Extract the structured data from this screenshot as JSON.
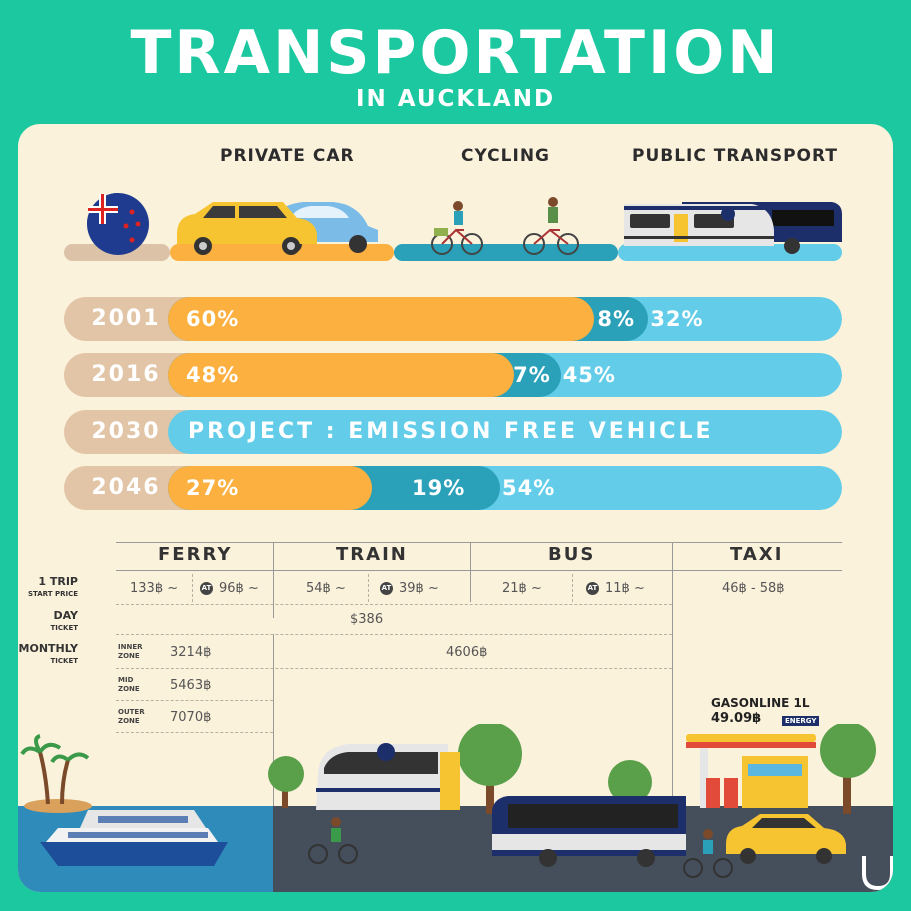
{
  "header": {
    "title": "TRANSPORTATION",
    "subtitle": "IN AUCKLAND"
  },
  "modes": {
    "private_car": "PRIVATE CAR",
    "cycling": "CYCLING",
    "public_transport": "PUBLIC TRANSPORT"
  },
  "colors": {
    "car": "#fbb040",
    "cycling": "#2aa1b8",
    "public": "#63cde9",
    "year_cap": "#e2c4a6"
  },
  "share_rows": [
    {
      "year": "2001",
      "car_label": "60%",
      "cycling_label": "8%",
      "public_label": "32%",
      "car": 60,
      "cycling": 8,
      "public": 32
    },
    {
      "year": "2016",
      "car_label": "48%",
      "cycling_label": "7%",
      "public_label": "45%",
      "car": 48,
      "cycling": 7,
      "public": 45
    },
    {
      "year": "2030",
      "project": "PROJECT : EMISSION FREE VEHICLE"
    },
    {
      "year": "2046",
      "car_label": "27%",
      "cycling_label": "19%",
      "public_label": "54%",
      "car": 27,
      "cycling": 19,
      "public": 54
    }
  ],
  "table": {
    "headers": [
      "FERRY",
      "TRAIN",
      "BUS",
      "TAXI"
    ],
    "row_labels": {
      "trip": "1 TRIP",
      "trip_sub": "START PRICE",
      "day": "DAY",
      "day_sub": "TICKET",
      "monthly": "MONTHLY",
      "monthly_sub": "TICKET"
    },
    "trip": {
      "ferry_cash": "133฿ ~",
      "ferry_at": "96฿ ~",
      "train_cash": "54฿ ~",
      "train_at": "39฿ ~",
      "bus_cash": "21฿ ~",
      "bus_at": "11฿ ~",
      "taxi": "46฿ - 58฿"
    },
    "at_badge": "AT",
    "day_ticket": "$386",
    "monthly_public": "4606฿",
    "zones": [
      {
        "label1": "INNER",
        "label2": "ZONE",
        "price": "3214฿"
      },
      {
        "label1": "MID",
        "label2": "ZONE",
        "price": "5463฿"
      },
      {
        "label1": "OUTER",
        "label2": "ZONE",
        "price": "7070฿"
      }
    ]
  },
  "gas": {
    "label": "GASONLINE 1L",
    "price": "49.09฿",
    "brand": "ENERGY"
  }
}
